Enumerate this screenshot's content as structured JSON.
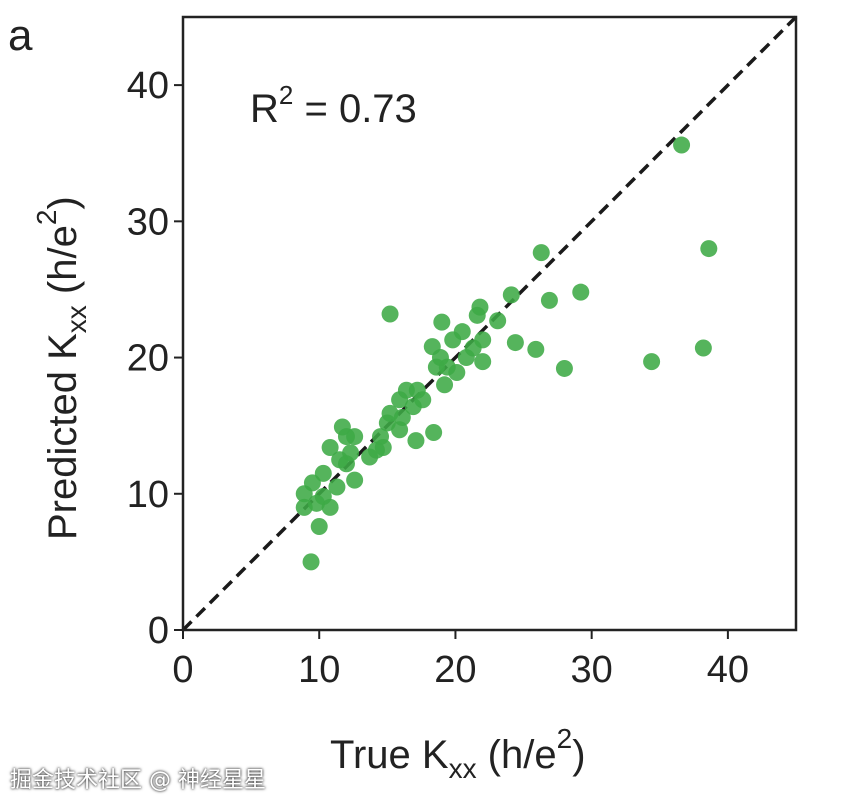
{
  "panel_label": "a",
  "watermark": "掘金技术社区 @ 神经星星",
  "chart_data": {
    "type": "scatter",
    "title": "",
    "annotation": {
      "text_main": "R",
      "superscript": "2",
      "text_rest": " = 0.73"
    },
    "xlabel": {
      "main": "True K",
      "sub": "xx",
      "unit_open": " (h/e",
      "unit_sup": "2",
      "unit_close": ")"
    },
    "ylabel": {
      "main": "Predicted K",
      "sub": "xx",
      "unit_open": " (h/e",
      "unit_sup": "2",
      "unit_close": ")"
    },
    "xlim": [
      0,
      45
    ],
    "ylim": [
      0,
      45
    ],
    "xticks": [
      0,
      10,
      20,
      30,
      40
    ],
    "yticks": [
      0,
      10,
      20,
      30,
      40
    ],
    "grid": false,
    "reference_line": {
      "style": "dashed",
      "color": "#1a1a1a",
      "from": [
        0,
        0
      ],
      "to": [
        45,
        45
      ]
    },
    "point_color": "#3daa45",
    "points": [
      [
        36.6,
        35.6
      ],
      [
        38.6,
        28.0
      ],
      [
        29.2,
        24.8
      ],
      [
        26.9,
        24.2
      ],
      [
        26.3,
        27.7
      ],
      [
        24.1,
        24.6
      ],
      [
        24.4,
        21.1
      ],
      [
        25.9,
        20.6
      ],
      [
        28.0,
        19.2
      ],
      [
        34.4,
        19.7
      ],
      [
        38.2,
        20.7
      ],
      [
        15.2,
        23.2
      ],
      [
        9.4,
        5.0
      ],
      [
        19.0,
        22.6
      ],
      [
        18.4,
        14.5
      ],
      [
        17.1,
        13.9
      ],
      [
        21.8,
        23.7
      ],
      [
        21.6,
        23.1
      ],
      [
        23.1,
        22.7
      ],
      [
        18.3,
        20.8
      ],
      [
        20.5,
        21.9
      ],
      [
        19.8,
        21.3
      ],
      [
        22.0,
        21.3
      ],
      [
        22.0,
        19.7
      ],
      [
        18.9,
        20.0
      ],
      [
        19.4,
        19.3
      ],
      [
        20.1,
        18.9
      ],
      [
        19.2,
        18.0
      ],
      [
        20.8,
        20.0
      ],
      [
        21.3,
        20.7
      ],
      [
        18.6,
        19.3
      ],
      [
        16.4,
        17.6
      ],
      [
        17.2,
        17.6
      ],
      [
        17.6,
        16.9
      ],
      [
        15.9,
        16.9
      ],
      [
        16.9,
        16.4
      ],
      [
        15.2,
        15.9
      ],
      [
        16.1,
        15.6
      ],
      [
        15.0,
        15.2
      ],
      [
        15.9,
        14.7
      ],
      [
        14.5,
        14.2
      ],
      [
        14.7,
        13.4
      ],
      [
        13.7,
        12.7
      ],
      [
        14.2,
        13.2
      ],
      [
        11.7,
        14.9
      ],
      [
        12.0,
        14.2
      ],
      [
        10.8,
        13.4
      ],
      [
        12.6,
        14.2
      ],
      [
        12.3,
        13.0
      ],
      [
        11.5,
        12.5
      ],
      [
        12.6,
        11.0
      ],
      [
        11.3,
        10.5
      ],
      [
        10.3,
        11.5
      ],
      [
        9.5,
        10.8
      ],
      [
        8.9,
        10.0
      ],
      [
        9.8,
        9.3
      ],
      [
        10.8,
        9.0
      ],
      [
        8.9,
        9.0
      ],
      [
        10.0,
        7.6
      ],
      [
        10.3,
        9.8
      ],
      [
        12.0,
        12.2
      ]
    ]
  }
}
